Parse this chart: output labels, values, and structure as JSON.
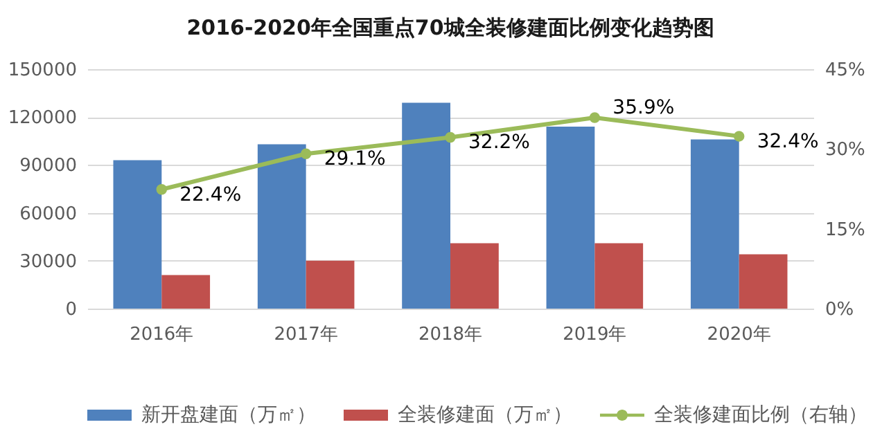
{
  "chart_data": {
    "type": "bar",
    "title": "2016-2020年全国重点70城全装修建面比例变化趋势图",
    "categories": [
      "2016年",
      "2017年",
      "2018年",
      "2019年",
      "2020年"
    ],
    "series": [
      {
        "name": "新开盘建面（万㎡）",
        "color": "#4f81bd",
        "values": [
          93000,
          103000,
          129000,
          114000,
          106000
        ]
      },
      {
        "name": "全装修建面（万㎡）",
        "color": "#c0504d",
        "values": [
          21000,
          30000,
          41000,
          41000,
          34000
        ]
      },
      {
        "name": "全装修建面比例（右轴）",
        "type": "line",
        "axis": "y2",
        "color": "#9bbb59",
        "marker": "circle",
        "line_style": "solid",
        "values": [
          22.4,
          29.1,
          32.2,
          35.9,
          32.4
        ],
        "value_labels": [
          "22.4%",
          "29.1%",
          "32.2%",
          "35.9%",
          "32.4%"
        ]
      }
    ],
    "ylim": [
      0,
      150000
    ],
    "yticks": [
      0,
      30000,
      60000,
      90000,
      120000,
      150000
    ],
    "y2lim": [
      0,
      45
    ],
    "y2ticks": [
      {
        "value": 0,
        "label": "0%"
      },
      {
        "value": 15,
        "label": "15%"
      },
      {
        "value": 30,
        "label": "30%"
      },
      {
        "value": 45,
        "label": "45%"
      }
    ],
    "grid": "y",
    "legend": "bottom"
  }
}
